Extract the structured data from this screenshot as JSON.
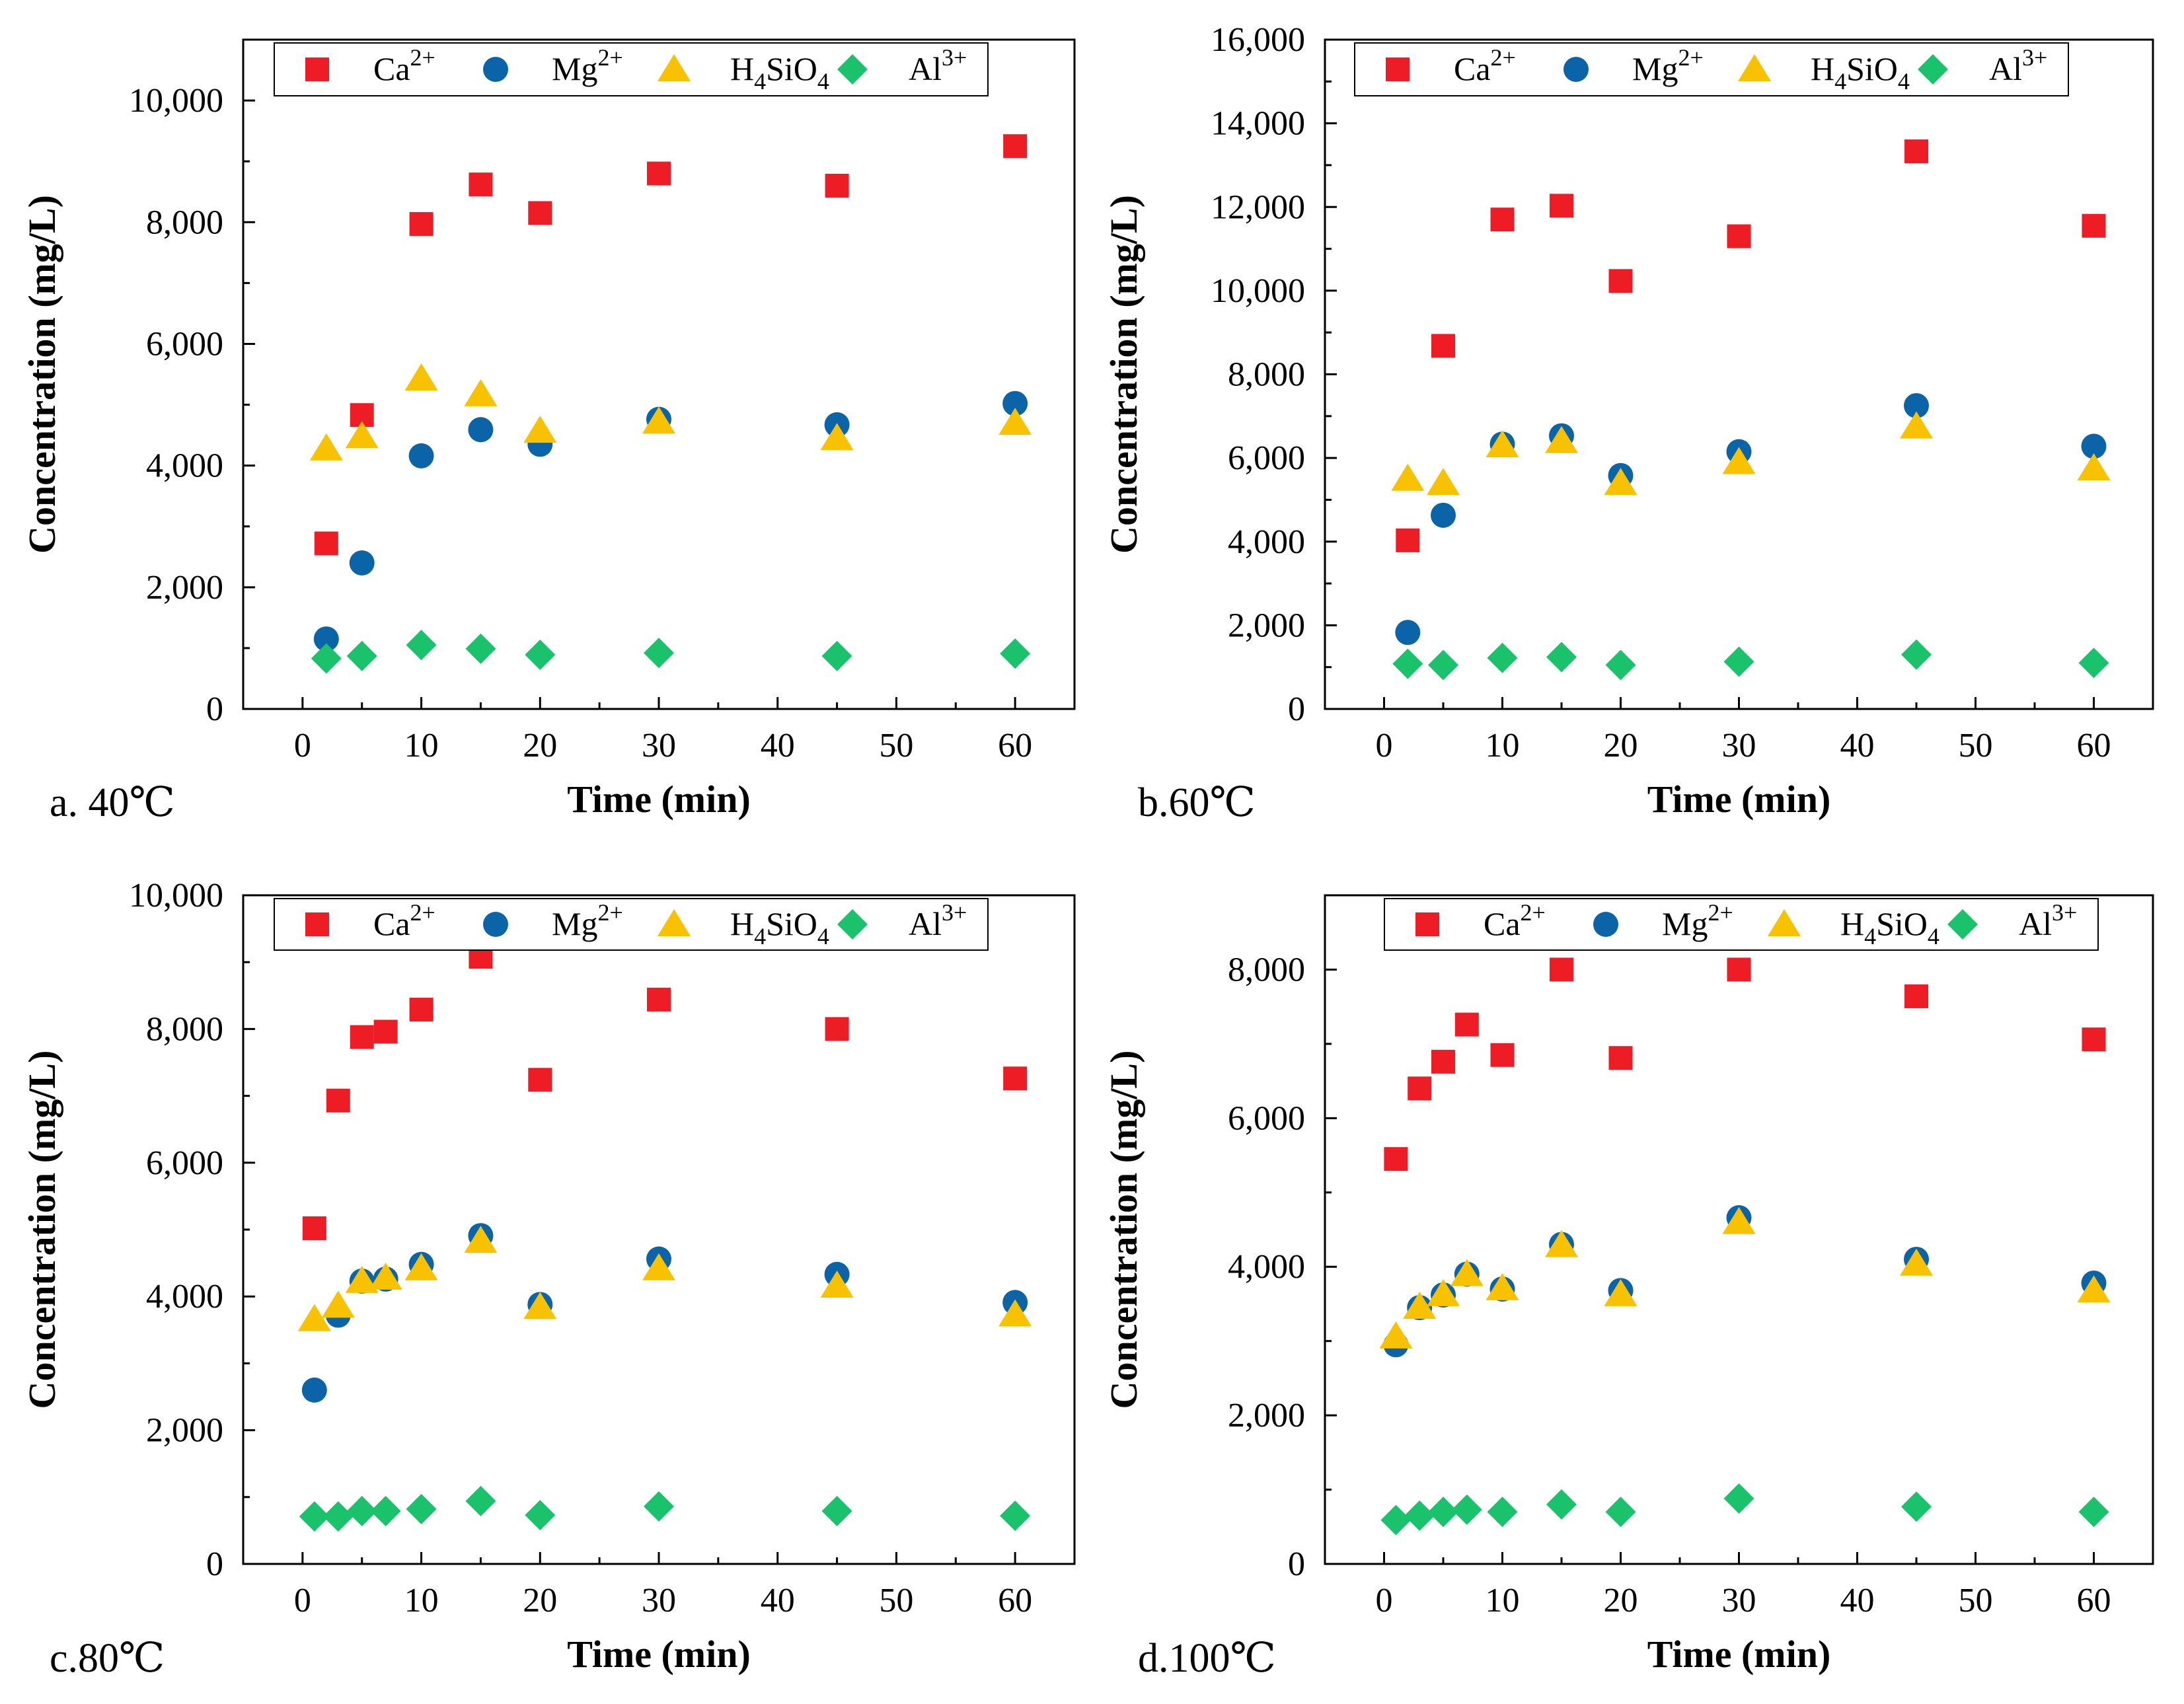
{
  "series_names": [
    "Ca2+",
    "Mg2+",
    "H4SiO4",
    "Al3+"
  ],
  "series_colors": [
    "#ee1c25",
    "#0c64a8",
    "#f8c200",
    "#19c26b"
  ],
  "series_markers": [
    "square",
    "circle",
    "triangle",
    "diamond"
  ],
  "chart_data": [
    {
      "type": "scatter",
      "panel_label": "a. 40℃",
      "xlabel": "Time (min)",
      "ylabel": "Concentration (mg/L)",
      "xlim": [
        -5,
        65
      ],
      "ylim": [
        0,
        11000
      ],
      "xticks": [
        0,
        10,
        20,
        30,
        40,
        50,
        60
      ],
      "yticks": [
        0,
        2000,
        4000,
        6000,
        8000,
        10000
      ],
      "ytick_labels": [
        "0",
        "2,000",
        "4,000",
        "6,000",
        "8,000",
        "10,000"
      ],
      "legend": [
        "Ca2+",
        "Mg2+",
        "H4SiO4",
        "Al3+"
      ],
      "x": [
        2,
        5,
        10,
        15,
        20,
        30,
        45,
        60
      ],
      "series": [
        {
          "name": "Ca2+",
          "values": [
            2720,
            4830,
            7970,
            8620,
            8150,
            8800,
            8600,
            9250
          ]
        },
        {
          "name": "Mg2+",
          "values": [
            1150,
            2400,
            4160,
            4590,
            4350,
            4760,
            4670,
            5020
          ]
        },
        {
          "name": "H4SiO4",
          "values": [
            4280,
            4480,
            5430,
            5170,
            4570,
            4720,
            4450,
            4700
          ]
        },
        {
          "name": "Al3+",
          "values": [
            830,
            870,
            1050,
            990,
            890,
            920,
            870,
            910
          ]
        }
      ]
    },
    {
      "type": "scatter",
      "panel_label": "b.60℃",
      "xlabel": "Time (min)",
      "ylabel": "Concentration (mg/L)",
      "xlim": [
        -5,
        65
      ],
      "ylim": [
        0,
        16000
      ],
      "xticks": [
        0,
        10,
        20,
        30,
        40,
        50,
        60
      ],
      "yticks": [
        0,
        2000,
        4000,
        6000,
        8000,
        10000,
        12000,
        14000,
        16000
      ],
      "ytick_labels": [
        "0",
        "2,000",
        "4,000",
        "6,000",
        "8,000",
        "10,000",
        "12,000",
        "14,000",
        "16,000"
      ],
      "legend": [
        "Ca2+",
        "Mg2+",
        "H4SiO4",
        "Al3+"
      ],
      "x": [
        2,
        5,
        10,
        15,
        20,
        30,
        45,
        60
      ],
      "series": [
        {
          "name": "Ca2+",
          "values": [
            4030,
            8680,
            11700,
            12030,
            10230,
            11300,
            13330,
            11550
          ]
        },
        {
          "name": "Mg2+",
          "values": [
            1830,
            4630,
            6330,
            6530,
            5580,
            6150,
            7250,
            6280
          ]
        },
        {
          "name": "H4SiO4",
          "values": [
            5500,
            5400,
            6300,
            6400,
            5400,
            5900,
            6750,
            5750
          ]
        },
        {
          "name": "Al3+",
          "values": [
            1080,
            1050,
            1220,
            1240,
            1050,
            1130,
            1300,
            1100
          ]
        }
      ]
    },
    {
      "type": "scatter",
      "panel_label": "c.80℃",
      "xlabel": "Time (min)",
      "ylabel": "Concentration (mg/L)",
      "xlim": [
        -5,
        65
      ],
      "ylim": [
        0,
        10000
      ],
      "xticks": [
        0,
        10,
        20,
        30,
        40,
        50,
        60
      ],
      "yticks": [
        0,
        2000,
        4000,
        6000,
        8000,
        10000
      ],
      "ytick_labels": [
        "0",
        "2,000",
        "4,000",
        "6,000",
        "8,000",
        "10,000"
      ],
      "legend": [
        "Ca2+",
        "Mg2+",
        "H4SiO4",
        "Al3+"
      ],
      "x": [
        1,
        3,
        5,
        7,
        10,
        15,
        20,
        30,
        45,
        60
      ],
      "series": [
        {
          "name": "Ca2+",
          "values": [
            5020,
            6930,
            7880,
            7960,
            8290,
            9080,
            7240,
            8440,
            8000,
            7260
          ]
        },
        {
          "name": "Mg2+",
          "values": [
            2600,
            3720,
            4230,
            4260,
            4480,
            4910,
            3880,
            4560,
            4330,
            3910
          ]
        },
        {
          "name": "H4SiO4",
          "values": [
            3660,
            3860,
            4230,
            4280,
            4420,
            4830,
            3840,
            4420,
            4160,
            3730
          ]
        },
        {
          "name": "Al3+",
          "values": [
            710,
            710,
            790,
            790,
            820,
            940,
            730,
            860,
            790,
            720
          ]
        }
      ]
    },
    {
      "type": "scatter",
      "panel_label": "d.100℃",
      "xlabel": "Time (min)",
      "ylabel": "Concentration (mg/L)",
      "xlim": [
        -5,
        65
      ],
      "ylim": [
        0,
        9000
      ],
      "xticks": [
        0,
        10,
        20,
        30,
        40,
        50,
        60
      ],
      "yticks": [
        0,
        2000,
        4000,
        6000,
        8000
      ],
      "ytick_labels": [
        "0",
        "2,000",
        "4,000",
        "6,000",
        "8,000"
      ],
      "legend": [
        "Ca2+",
        "Mg2+",
        "H4SiO4",
        "Al3+"
      ],
      "x": [
        1,
        3,
        5,
        7,
        10,
        15,
        20,
        30,
        45,
        60
      ],
      "series": [
        {
          "name": "Ca2+",
          "values": [
            5450,
            6400,
            6760,
            7260,
            6850,
            8000,
            6810,
            8000,
            7640,
            7060
          ]
        },
        {
          "name": "Mg2+",
          "values": [
            2950,
            3450,
            3620,
            3900,
            3700,
            4300,
            3680,
            4660,
            4100,
            3780
          ]
        },
        {
          "name": "H4SiO4",
          "values": [
            3060,
            3460,
            3630,
            3900,
            3710,
            4290,
            3630,
            4600,
            4040,
            3680
          ]
        },
        {
          "name": "Al3+",
          "values": [
            590,
            650,
            700,
            730,
            700,
            800,
            700,
            880,
            770,
            700
          ]
        }
      ]
    }
  ]
}
